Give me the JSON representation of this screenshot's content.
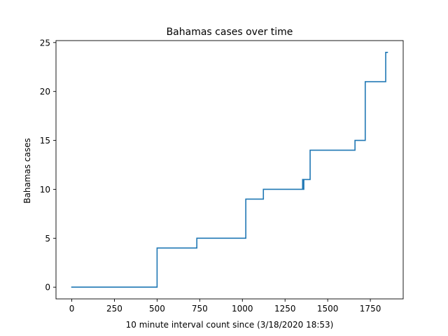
{
  "chart_data": {
    "type": "line",
    "title": "Bahamas cases over time",
    "xlabel": "10 minute interval count since (3/18/2020 18:53)",
    "ylabel": "Bahamas cases",
    "xlim": [
      -92.5,
      1942.5
    ],
    "ylim": [
      -1.2,
      25.2
    ],
    "xticks": [
      0,
      250,
      500,
      750,
      1000,
      1250,
      1500,
      1750
    ],
    "yticks": [
      0,
      5,
      10,
      15,
      20,
      25
    ],
    "grid": false,
    "legend": "none",
    "series": [
      {
        "color": "#1f77b4",
        "x": [
          0,
          500,
          500,
          733,
          733,
          1020,
          1020,
          1123,
          1123,
          1353,
          1353,
          1356,
          1356,
          1360,
          1360,
          1397,
          1397,
          1660,
          1660,
          1720,
          1720,
          1840,
          1840,
          1850
        ],
        "y": [
          0,
          0,
          4,
          4,
          5,
          5,
          9,
          9,
          10,
          10,
          11,
          11,
          10,
          10,
          11,
          11,
          14,
          14,
          15,
          15,
          21,
          21,
          24,
          24
        ]
      }
    ]
  }
}
